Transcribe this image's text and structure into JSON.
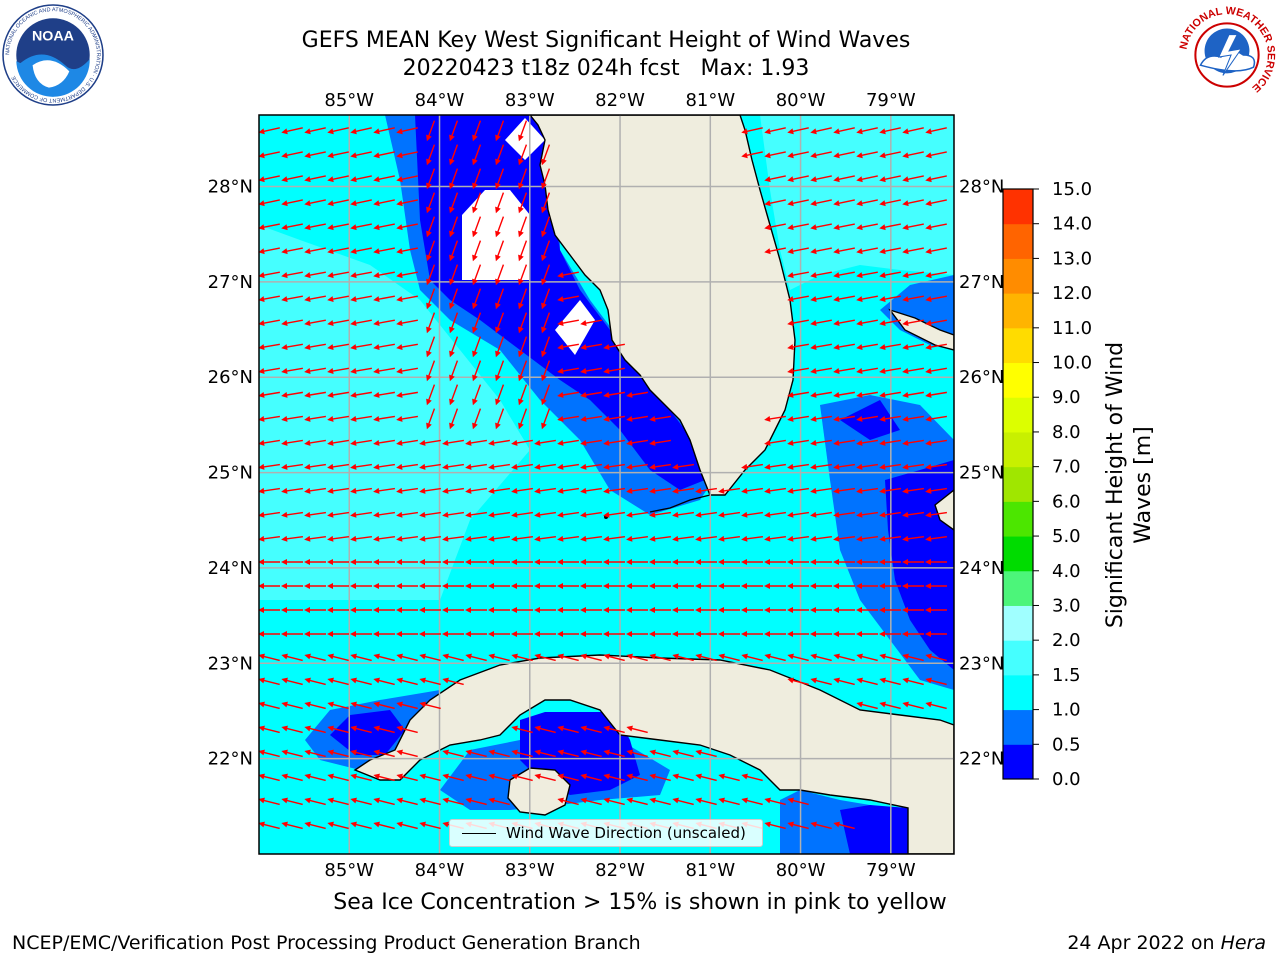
{
  "title": {
    "line1": "GEFS MEAN Key West Significant Height of Wind Waves",
    "line2": "20220423 t18z 024h fcst   Max: 1.93"
  },
  "logos": {
    "noaa": {
      "text": "NOAA",
      "ring_text": "NATIONAL OCEANIC AND ATMOSPHERIC ADMINISTRATION · U.S. DEPARTMENT OF COMMERCE",
      "icon": "noaa-logo"
    },
    "nws": {
      "ring_text": "NATIONAL WEATHER SERVICE",
      "icon": "nws-logo"
    }
  },
  "map": {
    "lon_ticks": [
      "85°W",
      "84°W",
      "83°W",
      "82°W",
      "81°W",
      "80°W",
      "79°W"
    ],
    "lat_ticks": [
      "22°N",
      "23°N",
      "24°N",
      "25°N",
      "26°N",
      "27°N",
      "28°N"
    ],
    "lon_values": [
      -85,
      -84,
      -83,
      -82,
      -81,
      -80,
      -79
    ],
    "lat_values": [
      22,
      23,
      24,
      25,
      26,
      27,
      28
    ],
    "extent": {
      "lon_min": -86.0,
      "lon_max": -78.3,
      "lat_min": 21.0,
      "lat_max": 28.75
    },
    "colors": {
      "land": "#efedde",
      "arrow": "#ff0000",
      "grid": "#b0b0b0",
      "coast": "#000000"
    }
  },
  "legend": {
    "label": "Wind Wave Direction (unscaled)"
  },
  "colorbar": {
    "label": "Significant Height of Wind Waves [m]",
    "label_line1": "Significant Height of Wind",
    "label_line2": "Waves [m]",
    "tick_labels": [
      "0.0",
      "0.5",
      "1.0",
      "1.5",
      "2.0",
      "3.0",
      "4.0",
      "5.0",
      "6.0",
      "7.0",
      "8.0",
      "9.0",
      "10.0",
      "11.0",
      "12.0",
      "13.0",
      "14.0",
      "15.0"
    ],
    "colors": [
      "#0000ff",
      "#0073ff",
      "#00ffff",
      "#45ffff",
      "#a0ffff",
      "#4cf57a",
      "#00dc00",
      "#4ce600",
      "#a0e600",
      "#c8f000",
      "#dcff00",
      "#ffff00",
      "#ffdc00",
      "#ffb400",
      "#ff8c00",
      "#ff6400",
      "#ff3200",
      "#ff0000"
    ]
  },
  "subtitle": "Sea Ice Concentration > 15% is shown in pink to yellow",
  "footer": {
    "left": "NCEP/EMC/Verification Post Processing Product Generation Branch",
    "date": "24 Apr 2022 on ",
    "host": "Hera"
  }
}
